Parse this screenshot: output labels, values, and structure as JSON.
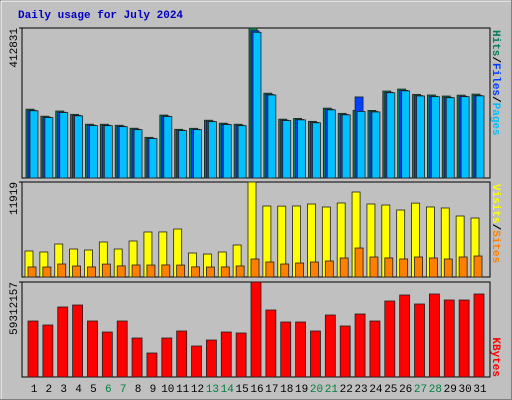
{
  "chart_data": [
    {
      "type": "bar",
      "title": "Daily usage for July 2024",
      "ylim": [
        0,
        412831
      ],
      "yticks": [
        412831
      ],
      "series": [
        {
          "name": "Hits",
          "color": "#00805c",
          "values": [
            189420,
            170115,
            184302,
            175210,
            148033,
            147890,
            145120,
            137006,
            111894,
            173205,
            134012,
            136770,
            159004,
            150877,
            147950,
            412831,
            233410,
            161920,
            164002,
            155870,
            192330,
            177904,
            186120,
            185960,
            239330,
            244810,
            230150,
            228470,
            225610,
            228040,
            230900
          ]
        },
        {
          "name": "Files",
          "color": "#0040ff",
          "values": [
            186210,
            167340,
            181050,
            172400,
            145300,
            145120,
            142310,
            134200,
            109420,
            170380,
            131550,
            134050,
            156210,
            148120,
            145040,
            405120,
            229880,
            159060,
            161030,
            153110,
            188940,
            174870,
            223100,
            182870,
            235800,
            240970,
            226850,
            224920,
            222010,
            224860,
            227130
          ]
        },
        {
          "name": "Pages",
          "color": "#00c0ff",
          "values": [
            185010,
            166220,
            180100,
            171030,
            144200,
            144010,
            141280,
            133100,
            108660,
            169220,
            130540,
            133080,
            155120,
            147010,
            144020,
            400880,
            228450,
            158010,
            159980,
            152060,
            187620,
            173750,
            183020,
            181710,
            234590,
            239880,
            225730,
            223800,
            220910,
            223760,
            225990
          ]
        }
      ],
      "legend_separator": "/"
    },
    {
      "type": "bar",
      "ylim": [
        0,
        11919
      ],
      "yticks": [
        11919
      ],
      "series": [
        {
          "name": "Visits",
          "color": "#ffff00",
          "values": [
            3262,
            3137,
            4140,
            3513,
            3388,
            4391,
            3513,
            4517,
            5646,
            5650,
            6022,
            3011,
            2886,
            3137,
            4015,
            11919,
            8908,
            8890,
            8912,
            9159,
            8782,
            9284,
            10664,
            9160,
            9033,
            8406,
            9270,
            8785,
            8657,
            7653,
            7402
          ]
        },
        {
          "name": "Sites",
          "color": "#ff8000",
          "values": [
            1255,
            1250,
            1631,
            1380,
            1262,
            1620,
            1391,
            1506,
            1500,
            1512,
            1498,
            1270,
            1248,
            1262,
            1384,
            2258,
            1882,
            1630,
            1756,
            1880,
            2007,
            2384,
            3638,
            2509,
            2390,
            2262,
            2510,
            2385,
            2258,
            2512,
            2635
          ]
        }
      ],
      "legend_separator": "/"
    },
    {
      "type": "bar",
      "ylim": [
        0,
        59312157
      ],
      "yticks": [
        59312157
      ],
      "series": [
        {
          "name": "KBytes",
          "color": "#ff0000",
          "values": [
            34962910,
            32466000,
            43700800,
            44950300,
            34960100,
            28095400,
            34955800,
            24349200,
            14984100,
            24351000,
            28719500,
            19354500,
            23100400,
            28096200,
            27471500,
            59312157,
            41830600,
            34338300,
            34340100,
            28720300,
            38708900,
            31841000,
            39333300,
            34961200,
            47449700,
            51195700,
            45576700,
            51820000,
            48074000,
            48070100,
            51819400
          ]
        }
      ],
      "categories": [
        "1",
        "2",
        "3",
        "4",
        "5",
        "6",
        "7",
        "8",
        "9",
        "10",
        "11",
        "12",
        "13",
        "14",
        "15",
        "16",
        "17",
        "18",
        "19",
        "20",
        "21",
        "22",
        "23",
        "24",
        "25",
        "26",
        "27",
        "28",
        "29",
        "30",
        "31"
      ],
      "label_colors": [
        "#000000",
        "#000000",
        "#000000",
        "#000000",
        "#000000",
        "#008040",
        "#008040",
        "#000000",
        "#000000",
        "#000000",
        "#000000",
        "#000000",
        "#008040",
        "#008040",
        "#000000",
        "#000000",
        "#000000",
        "#000000",
        "#000000",
        "#008040",
        "#008040",
        "#000000",
        "#000000",
        "#000000",
        "#000000",
        "#000000",
        "#008040",
        "#008040",
        "#000000",
        "#000000",
        "#000000"
      ]
    }
  ]
}
